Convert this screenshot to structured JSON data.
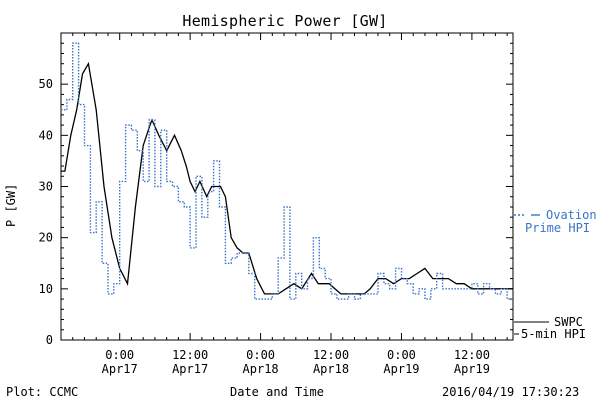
{
  "chart_data": {
    "type": "line",
    "title": "Hemispheric Power [GW]",
    "ylabel": "P [GW]",
    "xlabel": "Date and Time",
    "ylim": [
      0,
      60
    ],
    "xlim": [
      "2016-04-16 14:00",
      "2016-04-19 19:00"
    ],
    "yticks": [
      0,
      10,
      20,
      30,
      40,
      50
    ],
    "xticks": [
      {
        "time": "2016-04-17 00:00",
        "line1": "0:00",
        "line2": "Apr17"
      },
      {
        "time": "2016-04-17 12:00",
        "line1": "12:00",
        "line2": "Apr17"
      },
      {
        "time": "2016-04-18 00:00",
        "line1": "0:00",
        "line2": "Apr18"
      },
      {
        "time": "2016-04-18 12:00",
        "line1": "12:00",
        "line2": "Apr18"
      },
      {
        "time": "2016-04-19 00:00",
        "line1": "0:00",
        "line2": "Apr19"
      },
      {
        "time": "2016-04-19 12:00",
        "line1": "12:00",
        "line2": "Apr19"
      }
    ],
    "series": [
      {
        "name": "SWPC 5-min HPI",
        "label_line1": "SWPC",
        "label_line2": "5-min HPI",
        "style": "solid",
        "color": "#000000",
        "x": [
          "2016-04-16 14:00",
          "2016-04-16 14:40",
          "2016-04-16 15:40",
          "2016-04-16 16:40",
          "2016-04-16 17:40",
          "2016-04-16 18:40",
          "2016-04-16 20:00",
          "2016-04-16 21:20",
          "2016-04-16 22:40",
          "2016-04-17 00:00",
          "2016-04-17 01:20",
          "2016-04-17 02:40",
          "2016-04-17 04:00",
          "2016-04-17 05:10",
          "2016-04-17 05:30",
          "2016-04-17 06:40",
          "2016-04-17 08:00",
          "2016-04-17 09:20",
          "2016-04-17 10:30",
          "2016-04-17 11:20",
          "2016-04-17 12:00",
          "2016-04-17 12:50",
          "2016-04-17 13:40",
          "2016-04-17 14:50",
          "2016-04-17 15:40",
          "2016-04-17 17:10",
          "2016-04-17 18:00",
          "2016-04-17 19:00",
          "2016-04-17 20:00",
          "2016-04-17 21:00",
          "2016-04-17 22:00",
          "2016-04-17 23:20",
          "2016-04-18 00:40",
          "2016-04-18 01:40",
          "2016-04-18 03:00",
          "2016-04-18 04:20",
          "2016-04-18 05:40",
          "2016-04-18 07:00",
          "2016-04-18 08:40",
          "2016-04-18 09:50",
          "2016-04-18 10:40",
          "2016-04-18 11:40",
          "2016-04-18 12:40",
          "2016-04-18 13:40",
          "2016-04-18 14:40",
          "2016-04-18 15:40",
          "2016-04-18 16:40",
          "2016-04-18 17:40",
          "2016-04-18 18:40",
          "2016-04-18 20:00",
          "2016-04-18 21:20",
          "2016-04-18 22:40",
          "2016-04-19 00:00",
          "2016-04-19 01:20",
          "2016-04-19 02:40",
          "2016-04-19 04:00",
          "2016-04-19 05:20",
          "2016-04-19 06:40",
          "2016-04-19 08:00",
          "2016-04-19 09:20",
          "2016-04-19 10:40",
          "2016-04-19 12:00",
          "2016-04-19 13:20",
          "2016-04-19 14:40",
          "2016-04-19 16:00",
          "2016-04-19 17:20",
          "2016-04-19 19:00"
        ],
        "y": [
          33,
          33,
          40,
          45,
          52,
          54,
          45,
          30,
          20,
          14,
          11,
          26,
          38,
          42,
          43,
          40,
          37,
          40,
          37,
          34,
          31,
          29,
          31,
          28,
          30,
          30,
          28,
          20,
          18,
          17,
          17,
          12,
          9,
          9,
          9,
          10,
          11,
          10,
          13,
          11,
          11,
          11,
          10,
          9,
          9,
          9,
          9,
          9,
          10,
          12,
          12,
          11,
          12,
          12,
          13,
          14,
          12,
          12,
          12,
          11,
          11,
          10,
          10,
          10,
          10,
          10,
          10
        ]
      },
      {
        "name": "Ovation Prime HPI",
        "label_line1": "Ovation",
        "label_line2": "Prime HPI",
        "style": "dotted",
        "color": "#3a74c9",
        "x": [
          "2016-04-16 14:00",
          "2016-04-16 15:00",
          "2016-04-16 16:00",
          "2016-04-16 17:00",
          "2016-04-16 18:00",
          "2016-04-16 19:00",
          "2016-04-16 20:00",
          "2016-04-16 21:00",
          "2016-04-16 22:00",
          "2016-04-16 23:00",
          "2016-04-17 00:00",
          "2016-04-17 01:00",
          "2016-04-17 02:00",
          "2016-04-17 03:00",
          "2016-04-17 04:00",
          "2016-04-17 05:00",
          "2016-04-17 06:00",
          "2016-04-17 07:00",
          "2016-04-17 08:00",
          "2016-04-17 09:00",
          "2016-04-17 10:00",
          "2016-04-17 11:00",
          "2016-04-17 12:00",
          "2016-04-17 13:00",
          "2016-04-17 14:00",
          "2016-04-17 15:00",
          "2016-04-17 16:00",
          "2016-04-17 17:00",
          "2016-04-17 18:00",
          "2016-04-17 19:00",
          "2016-04-17 20:00",
          "2016-04-17 21:00",
          "2016-04-17 22:00",
          "2016-04-17 23:00",
          "2016-04-18 00:00",
          "2016-04-18 01:00",
          "2016-04-18 02:00",
          "2016-04-18 03:00",
          "2016-04-18 04:00",
          "2016-04-18 05:00",
          "2016-04-18 06:00",
          "2016-04-18 07:00",
          "2016-04-18 08:00",
          "2016-04-18 09:00",
          "2016-04-18 10:00",
          "2016-04-18 11:00",
          "2016-04-18 12:00",
          "2016-04-18 13:00",
          "2016-04-18 14:00",
          "2016-04-18 15:00",
          "2016-04-18 16:00",
          "2016-04-18 17:00",
          "2016-04-18 18:00",
          "2016-04-18 19:00",
          "2016-04-18 20:00",
          "2016-04-18 21:00",
          "2016-04-18 22:00",
          "2016-04-18 23:00",
          "2016-04-19 00:00",
          "2016-04-19 01:00",
          "2016-04-19 02:00",
          "2016-04-19 03:00",
          "2016-04-19 04:00",
          "2016-04-19 05:00",
          "2016-04-19 06:00",
          "2016-04-19 07:00",
          "2016-04-19 08:00",
          "2016-04-19 09:00",
          "2016-04-19 10:00",
          "2016-04-19 11:00",
          "2016-04-19 12:00",
          "2016-04-19 13:00",
          "2016-04-19 14:00",
          "2016-04-19 15:00",
          "2016-04-19 16:00",
          "2016-04-19 17:00",
          "2016-04-19 18:00",
          "2016-04-19 19:00"
        ],
        "y": [
          45,
          47,
          58,
          46,
          38,
          21,
          27,
          15,
          9,
          11,
          31,
          42,
          41,
          37,
          31,
          43,
          30,
          41,
          31,
          30,
          27,
          26,
          18,
          32,
          24,
          29,
          35,
          26,
          15,
          16,
          17,
          17,
          13,
          8,
          8,
          8,
          9,
          16,
          26,
          8,
          13,
          10,
          12,
          20,
          14,
          12,
          9,
          8,
          8,
          9,
          8,
          9,
          9,
          9,
          13,
          11,
          10,
          14,
          12,
          11,
          9,
          10,
          8,
          10,
          13,
          10,
          10,
          10,
          10,
          10,
          11,
          9,
          11,
          10,
          9,
          10,
          8,
          8
        ]
      }
    ]
  },
  "footer": {
    "left": "Plot: CCMC",
    "center": "Date and Time",
    "right": "2016/04/19 17:30:23"
  }
}
